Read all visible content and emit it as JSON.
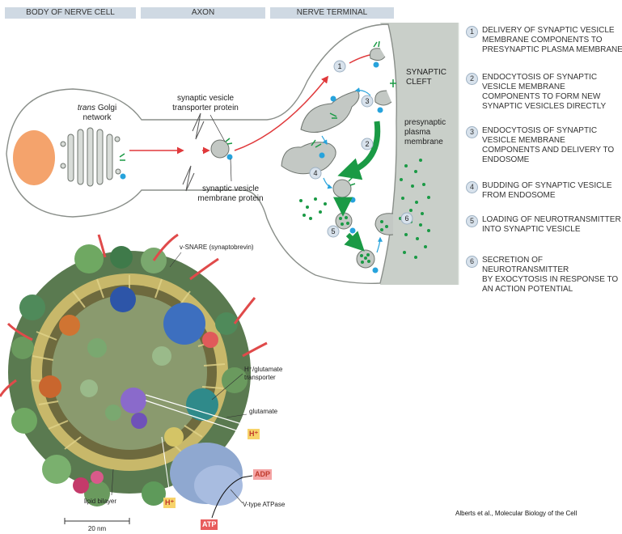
{
  "headers": {
    "cell_body": "BODY OF NERVE CELL",
    "axon": "AXON",
    "terminal": "NERVE TERMINAL"
  },
  "labels": {
    "trans": "trans",
    "golgi": "Golgi",
    "network": "network",
    "transporter_1": "synaptic vesicle",
    "transporter_2": "transporter protein",
    "membrane_protein_1": "synaptic vesicle",
    "membrane_protein_2": "membrane protein",
    "cleft_1": "SYNAPTIC",
    "cleft_2": "CLEFT",
    "presyn_1": "presynaptic",
    "presyn_2": "plasma",
    "presyn_3": "membrane"
  },
  "circle_numbers": [
    "1",
    "2",
    "3",
    "4",
    "5",
    "6"
  ],
  "steps": [
    {
      "num": "1",
      "lines": [
        "DELIVERY OF SYNAPTIC VESICLE",
        "MEMBRANE COMPONENTS TO",
        "PRESYNAPTIC PLASMA MEMBRANE"
      ]
    },
    {
      "num": "2",
      "lines": [
        "ENDOCYTOSIS OF SYNAPTIC",
        "VESICLE MEMBRANE",
        "COMPONENTS TO FORM NEW",
        "SYNAPTIC VESICLES DIRECTLY"
      ]
    },
    {
      "num": "3",
      "lines": [
        "ENDOCYTOSIS OF SYNAPTIC",
        "VESICLE MEMBRANE",
        "COMPONENTS AND DELIVERY TO",
        "ENDOSOME"
      ]
    },
    {
      "num": "4",
      "lines": [
        "BUDDING OF SYNAPTIC VESICLE",
        "FROM ENDOSOME"
      ]
    },
    {
      "num": "5",
      "lines": [
        "LOADING OF NEUROTRANSMITTER",
        "INTO SYNAPTIC VESICLE"
      ]
    },
    {
      "num": "6",
      "lines": [
        "SECRETION OF NEUROTRANSMITTER",
        "BY EXOCYTOSIS IN RESPONSE TO",
        "AN ACTION POTENTIAL"
      ]
    }
  ],
  "vesicle_labels": {
    "vsnare": "v-SNARE (synaptobrevin)",
    "hglu_1": "H⁺/glutamate",
    "hglu_2": "transporter",
    "glutamate": "glutamate",
    "h_plus_1": "H⁺",
    "h_plus_2": "H⁺",
    "adp": "ADP",
    "atp": "ATP",
    "lipid": "lipid bilayer",
    "vtype": "V-type ATPase",
    "scale": "20 nm"
  },
  "credit": "Alberts et al., Molecular Biology of the Cell",
  "colors": {
    "header_bg": "#cfd9e3",
    "membrane_bg": "#c9cfc9",
    "nucleus": "#f4a36c",
    "red_arrow": "#e0393b",
    "green": "#1a9a45",
    "blue_protein": "#27a3dc",
    "vesicle": "#c3c8c4",
    "h_plus_box": "#f7d36a",
    "atp_box": "#e85c5c"
  }
}
